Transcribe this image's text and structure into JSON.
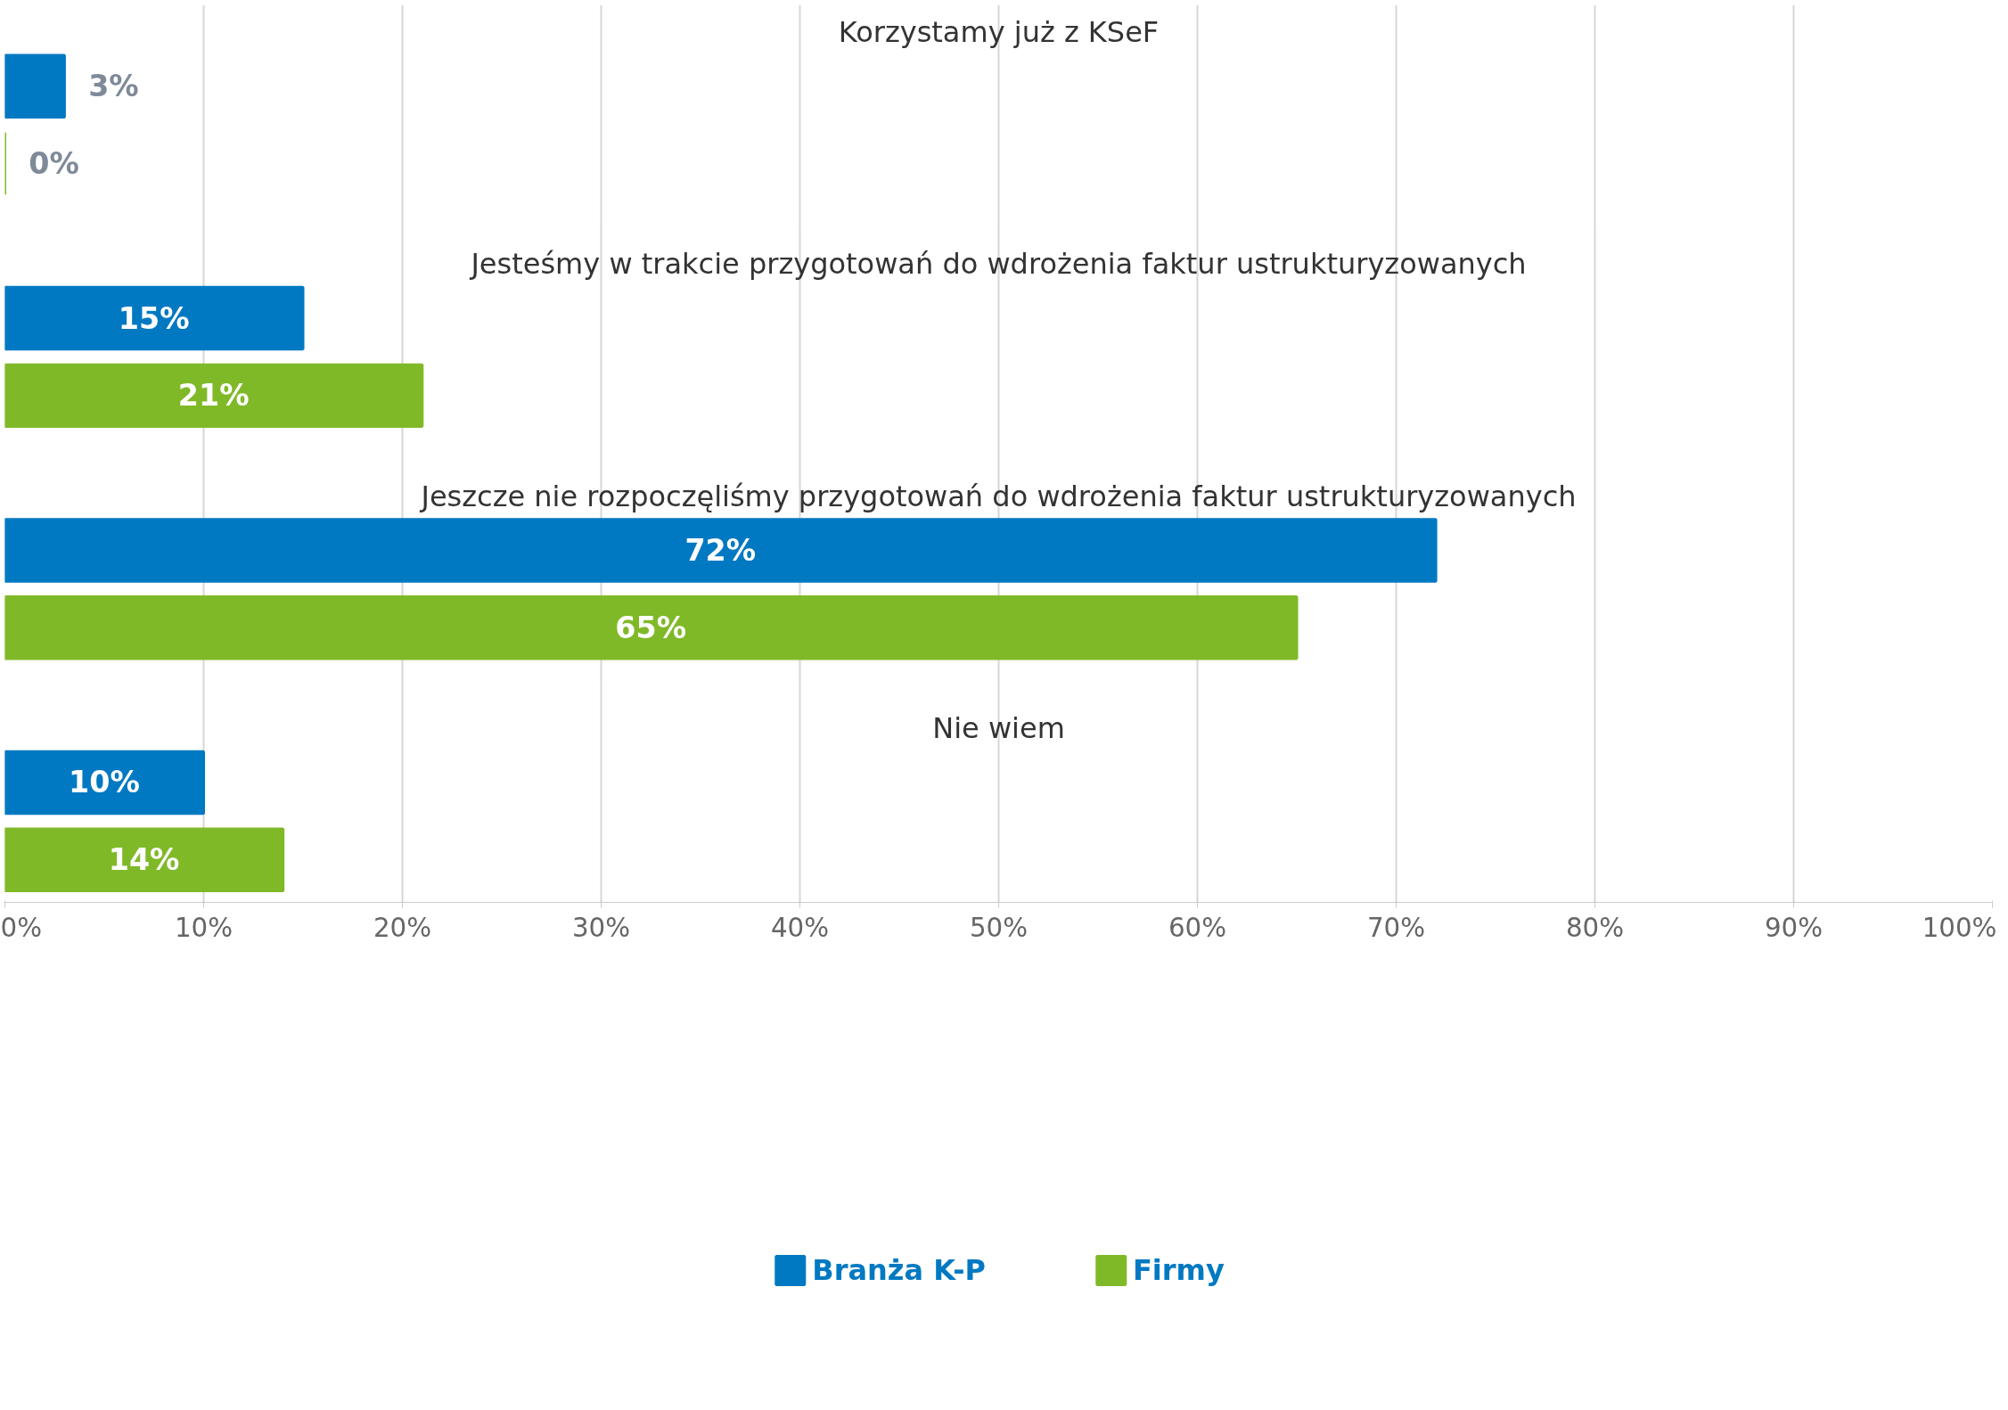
{
  "chart_data": {
    "type": "bar",
    "orientation": "horizontal",
    "categories": [
      "Korzystamy już z KSeF",
      "Jesteśmy w trakcie przygotowań do wdrożenia faktur ustrukturyzowanych",
      "Jeszcze nie rozpoczęliśmy przygotowań do wdrożenia faktur ustrukturyzowanych",
      "Nie wiem"
    ],
    "series": [
      {
        "name": "Branża K-P",
        "color": "#0079c2",
        "values": [
          3,
          15,
          72,
          10
        ],
        "value_labels": [
          "3%",
          "15%",
          "72%",
          "10%"
        ]
      },
      {
        "name": "Firmy",
        "color": "#80b928",
        "values": [
          0,
          21,
          65,
          14
        ],
        "value_labels": [
          "0%",
          "21%",
          "65%",
          "14%"
        ]
      }
    ],
    "xlim": [
      0,
      100
    ],
    "xticks": [
      {
        "value": 0,
        "label": "0%"
      },
      {
        "value": 10,
        "label": "10%"
      },
      {
        "value": 20,
        "label": "20%"
      },
      {
        "value": 30,
        "label": "30%"
      },
      {
        "value": 40,
        "label": "40%"
      },
      {
        "value": 50,
        "label": "50%"
      },
      {
        "value": 60,
        "label": "60%"
      },
      {
        "value": 70,
        "label": "70%"
      },
      {
        "value": 80,
        "label": "80%"
      },
      {
        "value": 90,
        "label": "90%"
      },
      {
        "value": 100,
        "label": "100%"
      }
    ],
    "grid": "x",
    "legend": "bottom"
  }
}
